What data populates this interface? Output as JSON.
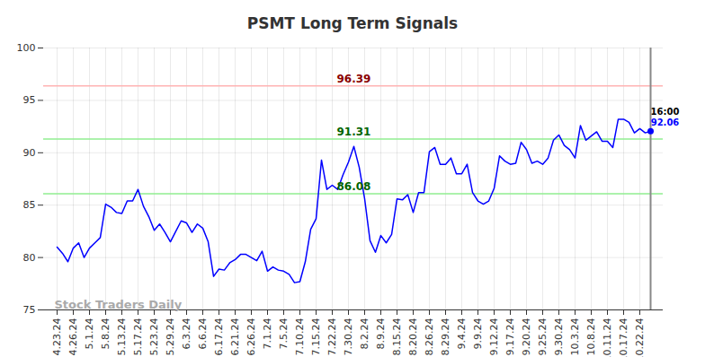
{
  "chart_data": {
    "type": "line",
    "title": "PSMT Long Term Signals",
    "categories": [
      "4.23.24",
      null,
      null,
      "4.26.24",
      null,
      null,
      "5.1.24",
      null,
      null,
      "5.8.24",
      null,
      null,
      "5.13.24",
      null,
      null,
      "5.17.24",
      null,
      null,
      "5.23.24",
      null,
      null,
      "5.29.24",
      null,
      null,
      "6.3.24",
      null,
      null,
      "6.6.24",
      null,
      null,
      "6.17.24",
      null,
      null,
      "6.21.24",
      null,
      null,
      "6.26.24",
      null,
      null,
      "7.1.24",
      null,
      null,
      "7.5.24",
      null,
      null,
      "7.10.24",
      null,
      null,
      "7.15.24",
      null,
      null,
      "7.22.24",
      null,
      null,
      "7.30.24",
      null,
      null,
      "8.2.24",
      null,
      null,
      "8.9.24",
      null,
      null,
      "8.15.24",
      null,
      null,
      "8.20.24",
      null,
      null,
      "8.26.24",
      null,
      null,
      "8.29.24",
      null,
      null,
      "9.4.24",
      null,
      null,
      "9.9.24",
      null,
      null,
      "9.12.24",
      null,
      null,
      "9.17.24",
      null,
      null,
      "9.20.24",
      null,
      null,
      "9.25.24",
      null,
      null,
      "9.30.24",
      null,
      null,
      "10.3.24",
      null,
      null,
      "10.8.24",
      null,
      null,
      "10.11.24",
      null,
      null,
      "10.17.24",
      null,
      null,
      "10.22.24",
      null,
      null
    ],
    "values": [
      81.0,
      80.4,
      79.6,
      80.9,
      81.4,
      80.0,
      80.9,
      81.4,
      81.9,
      85.1,
      84.8,
      84.3,
      84.2,
      85.4,
      85.4,
      86.5,
      84.9,
      83.9,
      82.6,
      83.2,
      82.4,
      81.5,
      82.5,
      83.5,
      83.3,
      82.4,
      83.2,
      82.8,
      81.5,
      78.2,
      78.9,
      78.8,
      79.5,
      79.8,
      80.3,
      80.3,
      80.0,
      79.7,
      80.6,
      78.7,
      79.1,
      78.8,
      78.7,
      78.4,
      77.6,
      77.7,
      79.6,
      82.7,
      83.7,
      89.3,
      86.5,
      86.9,
      86.5,
      87.9,
      89.1,
      90.6,
      88.6,
      85.6,
      81.6,
      80.5,
      82.1,
      81.4,
      82.2,
      85.6,
      85.5,
      86.0,
      84.3,
      86.2,
      86.2,
      90.1,
      90.5,
      88.9,
      88.9,
      89.5,
      88.0,
      88.0,
      88.9,
      86.2,
      85.4,
      85.1,
      85.4,
      86.6,
      89.7,
      89.2,
      88.9,
      89.0,
      91.0,
      90.3,
      89.0,
      89.2,
      88.9,
      89.5,
      91.2,
      91.7,
      90.7,
      90.3,
      89.5,
      92.6,
      91.2,
      91.6,
      92.0,
      91.1,
      91.1,
      90.5,
      93.2,
      93.2,
      92.9,
      91.9,
      92.3,
      91.9,
      92.06
    ],
    "color": "#0000ff",
    "ylim": [
      75,
      100
    ],
    "yticks": [
      75,
      80,
      85,
      90,
      95,
      100
    ],
    "grid": true,
    "reference_lines": [
      {
        "value": 96.39,
        "label": "96.39",
        "color": "#ffb3b3",
        "text_color": "#8b0000"
      },
      {
        "value": 91.31,
        "label": "91.31",
        "color": "#90ee90",
        "text_color": "#006400"
      },
      {
        "value": 86.08,
        "label": "86.08",
        "color": "#90ee90",
        "text_color": "#006400"
      }
    ],
    "last_point": {
      "time": "16:00",
      "label": "92.06"
    },
    "watermark": "Stock Traders Daily"
  }
}
